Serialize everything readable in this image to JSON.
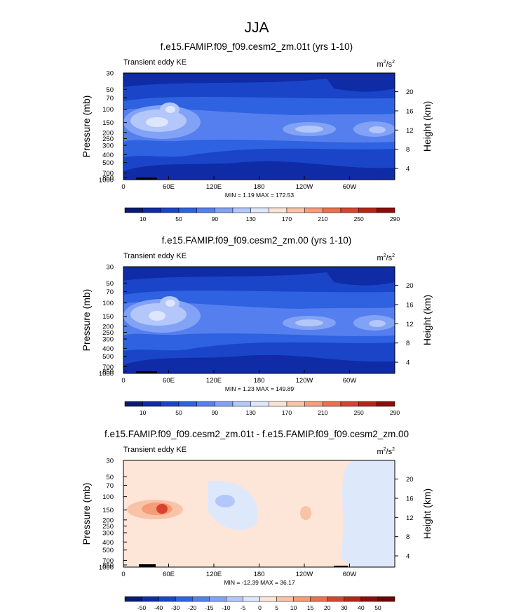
{
  "figure_title": "JJA",
  "chart_data": [
    {
      "type": "heatmap",
      "title": "f.e15.FAMIP.f09_f09.cesm2_zm.01t (yrs 1-10)",
      "subtitle_left": "Transient eddy KE",
      "units": "m2/s2",
      "units_base": "m",
      "units_exp": "2",
      "units_mid": "/s",
      "ylabel": "Pressure (mb)",
      "y2label": "Height (km)",
      "xticks": [
        "0",
        "60E",
        "120E",
        "180",
        "120W",
        "60W"
      ],
      "yticks": [
        "30",
        "50",
        "70",
        "100",
        "150",
        "200",
        "250",
        "300",
        "400",
        "500",
        "700",
        "850",
        "1000"
      ],
      "y2ticks": [
        "20",
        "16",
        "12",
        "8",
        "4"
      ],
      "stats_text": "MIN =   1.19  MAX = 172.53",
      "min": 1.19,
      "max": 172.53,
      "colorbar_labels": [
        "10",
        "50",
        "90",
        "130",
        "170",
        "210",
        "250",
        "290"
      ],
      "colorbar_colors": [
        "#0a1a6e",
        "#0f2ba5",
        "#1a45c8",
        "#2f62e0",
        "#557fee",
        "#82a2f5",
        "#b3c7fa",
        "#dde6fc",
        "#fbe3d3",
        "#f9c3a8",
        "#f59c79",
        "#ec6f4e",
        "#d74330",
        "#b82318",
        "#8c0c0b"
      ]
    },
    {
      "type": "heatmap",
      "title": "f.e15.FAMIP.f09_f09.cesm2_zm.00 (yrs 1-10)",
      "subtitle_left": "Transient eddy KE",
      "units": "m2/s2",
      "units_base": "m",
      "units_exp": "2",
      "units_mid": "/s",
      "ylabel": "Pressure (mb)",
      "y2label": "Height (km)",
      "xticks": [
        "0",
        "60E",
        "120E",
        "180",
        "120W",
        "60W"
      ],
      "yticks": [
        "30",
        "50",
        "70",
        "100",
        "150",
        "200",
        "250",
        "300",
        "400",
        "500",
        "700",
        "850",
        "1000"
      ],
      "y2ticks": [
        "20",
        "16",
        "12",
        "8",
        "4"
      ],
      "stats_text": "MIN =   1.23  MAX = 149.89",
      "min": 1.23,
      "max": 149.89,
      "colorbar_labels": [
        "10",
        "50",
        "90",
        "130",
        "170",
        "210",
        "250",
        "290"
      ],
      "colorbar_colors": [
        "#0a1a6e",
        "#0f2ba5",
        "#1a45c8",
        "#2f62e0",
        "#557fee",
        "#82a2f5",
        "#b3c7fa",
        "#dde6fc",
        "#fbe3d3",
        "#f9c3a8",
        "#f59c79",
        "#ec6f4e",
        "#d74330",
        "#b82318",
        "#8c0c0b"
      ]
    },
    {
      "type": "heatmap",
      "title": "f.e15.FAMIP.f09_f09.cesm2_zm.01t - f.e15.FAMIP.f09_f09.cesm2_zm.00",
      "subtitle_left": "Transient eddy KE",
      "units": "m2/s2",
      "units_base": "m",
      "units_exp": "2",
      "units_mid": "/s",
      "ylabel": "Pressure (mb)",
      "y2label": "Height (km)",
      "xticks": [
        "0",
        "60E",
        "120E",
        "180",
        "120W",
        "60W"
      ],
      "yticks": [
        "30",
        "50",
        "70",
        "100",
        "150",
        "200",
        "250",
        "300",
        "400",
        "500",
        "700",
        "850",
        "1000"
      ],
      "y2ticks": [
        "20",
        "16",
        "12",
        "8",
        "4"
      ],
      "stats_text": "MIN = -12.39  MAX =  36.17",
      "min": -12.39,
      "max": 36.17,
      "colorbar_labels": [
        "-50",
        "-40",
        "-30",
        "-20",
        "-15",
        "-10",
        "-5",
        "0",
        "5",
        "10",
        "15",
        "20",
        "30",
        "40",
        "50"
      ],
      "colorbar_colors": [
        "#0a1a6e",
        "#0f2ba5",
        "#1a45c8",
        "#2f62e0",
        "#557fee",
        "#82a2f5",
        "#b3c7fa",
        "#dde8fb",
        "#fde6d8",
        "#f9c3a8",
        "#f59c79",
        "#ec6f4e",
        "#d74330",
        "#b82318",
        "#8c0c0b",
        "#6a0505"
      ]
    }
  ]
}
